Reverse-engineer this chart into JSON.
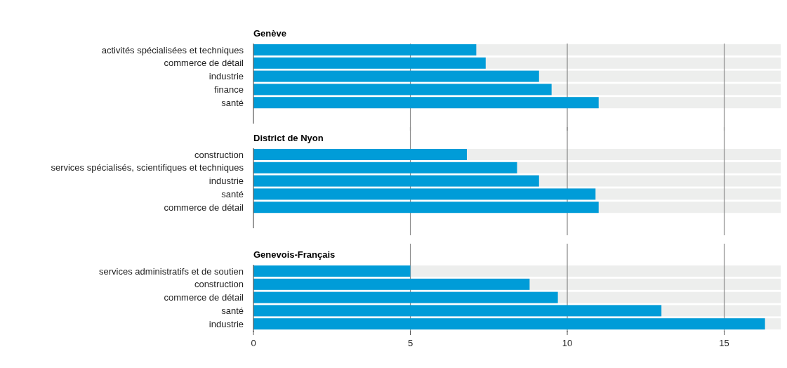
{
  "chart_data": [
    {
      "type": "bar",
      "orientation": "horizontal",
      "title": "Genève",
      "categories": [
        "activités spécialisées et techniques",
        "commerce de détail",
        "industrie",
        "finance",
        "santé"
      ],
      "series": [
        {
          "color": "#009cd8",
          "values": [
            7.1,
            7.4,
            9.1,
            9.5,
            11.0
          ]
        }
      ],
      "xlim": [
        0,
        16.8
      ],
      "xticks": [
        0,
        5,
        10,
        15
      ],
      "grid": "x",
      "tick_labels": "y"
    },
    {
      "type": "bar",
      "orientation": "horizontal",
      "title": "District de Nyon",
      "categories": [
        "construction",
        "services spécialisés, scientifiques et techniques",
        "industrie",
        "santé",
        "commerce de détail"
      ],
      "series": [
        {
          "color": "#009cd8",
          "values": [
            6.8,
            8.4,
            9.1,
            10.9,
            11.0
          ]
        }
      ],
      "xlim": [
        0,
        16.8
      ],
      "xticks": [
        0,
        5,
        10,
        15
      ],
      "grid": "x",
      "tick_labels": "y"
    },
    {
      "type": "bar",
      "orientation": "horizontal",
      "title": "Genevois-Français",
      "categories": [
        "services administratifs et de soutien",
        "construction",
        "commerce de détail",
        "santé",
        "industrie"
      ],
      "series": [
        {
          "color": "#009cd8",
          "values": [
            5.0,
            8.8,
            9.7,
            13.0,
            16.3
          ]
        }
      ],
      "xlim": [
        0,
        16.8
      ],
      "xticks": [
        0,
        5,
        10,
        15
      ],
      "grid": "x"
    }
  ]
}
